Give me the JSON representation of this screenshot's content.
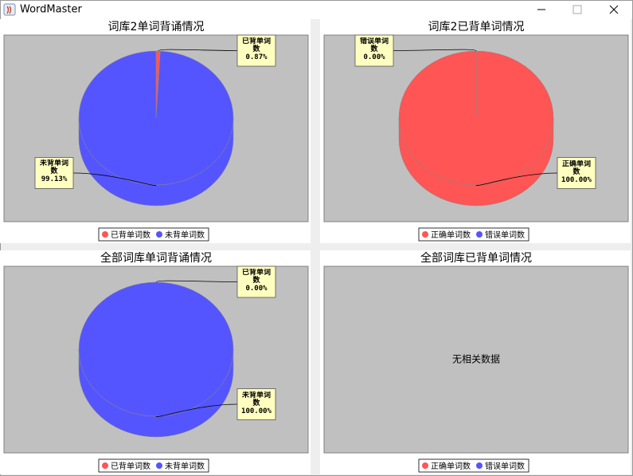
{
  "window_title": "WordMaster",
  "chart_data": [
    {
      "type": "pie",
      "title": "词库2单词背诵情况",
      "categories": [
        "已背单词数",
        "未背单词数"
      ],
      "values": [
        0.87,
        99.13
      ],
      "value_labels": [
        "0.87%",
        "99.13%"
      ],
      "colors": [
        "#ff5555",
        "#5555ff"
      ]
    },
    {
      "type": "pie",
      "title": "词库2已背单词情况",
      "categories": [
        "正确单词数",
        "错误单词数"
      ],
      "values": [
        100,
        0
      ],
      "value_labels": [
        "100.00%",
        "0.00%"
      ],
      "colors": [
        "#ff5555",
        "#5555ff"
      ]
    },
    {
      "type": "pie",
      "title": "全部词库单词背诵情况",
      "categories": [
        "已背单词数",
        "未背单词数"
      ],
      "values": [
        0,
        100
      ],
      "value_labels": [
        "0.00%",
        "100.00%"
      ],
      "colors": [
        "#ff5555",
        "#5555ff"
      ]
    },
    {
      "type": "pie",
      "title": "全部词库已背单词情况",
      "categories": [
        "正确单词数",
        "错误单词数"
      ],
      "colors": [
        "#ff5555",
        "#5555ff"
      ],
      "no_data_text": "无相关数据"
    }
  ]
}
